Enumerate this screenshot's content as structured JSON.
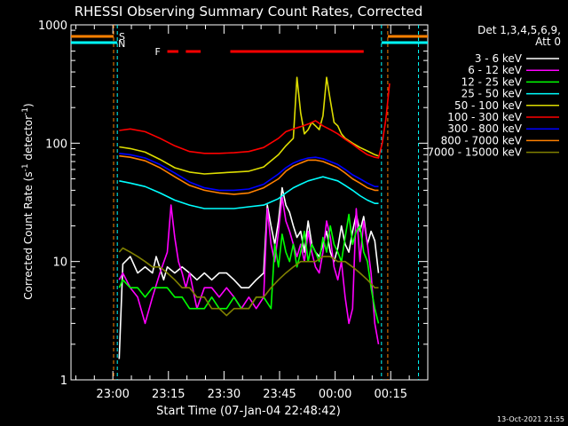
{
  "chart_data": {
    "type": "line",
    "title": "RHESSI Observing Summary Count Rates, Corrected",
    "xlabel": "Start Time (07-Jan-04 22:48:42)",
    "ylabel_prefix": "Corrected Count Rate (s",
    "ylabel_sup1": "-1",
    "ylabel_mid": " detector",
    "ylabel_sup2": "-1",
    "ylabel_suffix": ")",
    "x_unit": "minutes since 22:48:42",
    "xlim": [
      0,
      96.3
    ],
    "ylim": [
      1,
      1000
    ],
    "yscale": "log",
    "x_ticks": [
      {
        "label": "23:00",
        "x": 11.3
      },
      {
        "label": "23:15",
        "x": 26.3
      },
      {
        "label": "23:30",
        "x": 41.3
      },
      {
        "label": "23:45",
        "x": 56.3
      },
      {
        "label": "00:00",
        "x": 71.3
      },
      {
        "label": "00:15",
        "x": 86.3
      }
    ],
    "y_ticks": [
      {
        "label": "1",
        "y": 1
      },
      {
        "label": "10",
        "y": 10
      },
      {
        "label": "100",
        "y": 100
      },
      {
        "label": "1000",
        "y": 1000
      }
    ],
    "legend_header": [
      "Det 1,3,4,5,6,9,",
      "Att 0"
    ],
    "legend_placement": "right",
    "series": [
      {
        "name": "3 - 6 keV",
        "color": "#ffffff",
        "x": [
          13,
          14,
          16,
          18,
          20,
          22,
          23,
          25,
          26,
          28,
          30,
          32,
          34,
          36,
          38,
          40,
          42,
          44,
          46,
          48,
          50,
          52,
          53,
          54,
          55,
          56,
          57,
          58,
          59,
          60,
          61,
          62,
          63,
          64,
          65,
          66,
          67,
          68,
          69,
          70,
          71,
          72,
          73,
          74,
          75,
          76,
          77,
          78,
          79,
          80,
          81,
          82,
          83
        ],
        "y": [
          1.5,
          9.5,
          11,
          8,
          9,
          8,
          11,
          7,
          9,
          8,
          9,
          8,
          7,
          8,
          7,
          8,
          8,
          7,
          6,
          6,
          7,
          8,
          30,
          20,
          14,
          22,
          42,
          30,
          26,
          20,
          16,
          18,
          12,
          22,
          14,
          12,
          11,
          14,
          18,
          12,
          10,
          13,
          20,
          14,
          12,
          18,
          25,
          18,
          24,
          14,
          18,
          15,
          8
        ]
      },
      {
        "name": "6 - 12 keV",
        "color": "#ff00ff",
        "x": [
          13,
          14,
          16,
          18,
          20,
          22,
          24,
          26,
          27,
          28,
          29,
          30,
          31,
          32,
          34,
          36,
          38,
          40,
          42,
          44,
          46,
          48,
          50,
          52,
          53,
          54,
          55,
          56,
          57,
          58,
          59,
          60,
          61,
          62,
          63,
          64,
          65,
          66,
          67,
          68,
          69,
          70,
          71,
          72,
          73,
          74,
          75,
          76,
          77,
          78,
          79,
          80,
          81,
          82,
          83
        ],
        "y": [
          7,
          8,
          6,
          5,
          3,
          5,
          8,
          12,
          30,
          16,
          10,
          8,
          6,
          8,
          4,
          6,
          6,
          5,
          6,
          5,
          4,
          5,
          4,
          5,
          28,
          14,
          10,
          18,
          35,
          22,
          18,
          14,
          11,
          14,
          10,
          18,
          12,
          9,
          8,
          12,
          22,
          16,
          9,
          7,
          10,
          5,
          3,
          4,
          28,
          10,
          22,
          14,
          8,
          3,
          2
        ]
      },
      {
        "name": "12 - 25 keV",
        "color": "#00ff00",
        "x": [
          13,
          14,
          16,
          18,
          20,
          22,
          24,
          26,
          28,
          30,
          32,
          34,
          36,
          38,
          40,
          42,
          44,
          46,
          48,
          50,
          52,
          54,
          55,
          56,
          57,
          58,
          59,
          60,
          61,
          62,
          63,
          64,
          65,
          66,
          67,
          68,
          69,
          70,
          71,
          72,
          73,
          74,
          75,
          76,
          77,
          78,
          79,
          80,
          81,
          82,
          83
        ],
        "y": [
          6,
          7,
          6,
          6,
          5,
          6,
          6,
          6,
          5,
          5,
          4,
          4,
          4,
          5,
          4,
          4,
          5,
          4,
          4,
          5,
          5,
          4,
          14,
          9,
          17,
          12,
          10,
          14,
          9,
          12,
          18,
          10,
          14,
          12,
          10,
          16,
          12,
          20,
          14,
          12,
          10,
          16,
          25,
          14,
          18,
          20,
          12,
          10,
          6,
          4,
          3
        ]
      },
      {
        "name": "25 - 50 keV",
        "color": "#00ffff",
        "x": [
          13,
          16,
          20,
          24,
          28,
          32,
          36,
          40,
          44,
          48,
          52,
          56,
          58,
          60,
          62,
          64,
          66,
          68,
          70,
          72,
          74,
          76,
          78,
          80,
          82,
          83
        ],
        "y": [
          48,
          46,
          43,
          38,
          33,
          30,
          28,
          28,
          28,
          29,
          30,
          34,
          38,
          42,
          45,
          48,
          50,
          52,
          50,
          48,
          44,
          40,
          36,
          33,
          31,
          31
        ]
      },
      {
        "name": "50 - 100 keV",
        "color": "#dddd00",
        "x": [
          13,
          16,
          20,
          24,
          28,
          32,
          36,
          40,
          44,
          48,
          52,
          56,
          58,
          60,
          61,
          62,
          63,
          64,
          65,
          66,
          67,
          68,
          69,
          70,
          71,
          72,
          73,
          74,
          76,
          78,
          80,
          82,
          83
        ],
        "y": [
          93,
          90,
          84,
          73,
          62,
          57,
          55,
          56,
          57,
          58,
          63,
          80,
          95,
          110,
          360,
          180,
          120,
          130,
          150,
          140,
          130,
          170,
          360,
          230,
          150,
          140,
          120,
          110,
          100,
          92,
          86,
          80,
          78
        ]
      },
      {
        "name": "100 - 300 keV",
        "color": "#ff0000",
        "x": [
          13,
          16,
          20,
          24,
          28,
          32,
          36,
          40,
          44,
          48,
          52,
          56,
          58,
          60,
          62,
          64,
          66,
          68,
          70,
          72,
          74,
          76,
          78,
          80,
          82,
          83,
          84,
          85,
          86
        ],
        "y": [
          128,
          132,
          125,
          110,
          95,
          85,
          82,
          82,
          83,
          85,
          92,
          110,
          125,
          132,
          138,
          145,
          155,
          140,
          130,
          120,
          108,
          98,
          88,
          80,
          76,
          75,
          100,
          160,
          320
        ]
      },
      {
        "name": "300 - 800 keV",
        "color": "#0000ff",
        "x": [
          13,
          16,
          20,
          24,
          28,
          32,
          36,
          40,
          44,
          48,
          52,
          56,
          58,
          60,
          62,
          64,
          66,
          68,
          70,
          72,
          74,
          76,
          78,
          80,
          82,
          83
        ],
        "y": [
          82,
          80,
          75,
          66,
          56,
          47,
          42,
          40,
          40,
          41,
          45,
          55,
          62,
          68,
          72,
          75,
          76,
          74,
          70,
          66,
          60,
          54,
          50,
          46,
          43,
          43
        ]
      },
      {
        "name": "800 - 7000 keV",
        "color": "#ff8000",
        "x": [
          13,
          16,
          20,
          24,
          28,
          32,
          36,
          40,
          44,
          48,
          52,
          56,
          58,
          60,
          62,
          64,
          66,
          68,
          70,
          72,
          74,
          76,
          78,
          80,
          82,
          83
        ],
        "y": [
          78,
          76,
          71,
          62,
          52,
          44,
          40,
          38,
          37,
          38,
          42,
          50,
          58,
          64,
          68,
          72,
          72,
          70,
          66,
          62,
          56,
          50,
          46,
          42,
          40,
          40
        ]
      },
      {
        "name": "7000 - 15000 keV",
        "color": "#808000",
        "x": [
          13,
          14,
          16,
          18,
          20,
          22,
          24,
          26,
          28,
          30,
          32,
          34,
          36,
          38,
          40,
          42,
          44,
          46,
          48,
          50,
          52,
          54,
          56,
          58,
          60,
          62,
          64,
          66,
          68,
          70,
          72,
          74,
          76,
          78,
          80,
          82,
          83
        ],
        "y": [
          12,
          13,
          12,
          11,
          10,
          9,
          9,
          8,
          7,
          6,
          6,
          5,
          5,
          4,
          4,
          3.5,
          4,
          4,
          4,
          5,
          5,
          6,
          7,
          8,
          9,
          10,
          10,
          10,
          11,
          11,
          10,
          10,
          9,
          8,
          7,
          6,
          6
        ]
      }
    ],
    "annotations": [
      {
        "label": "S",
        "color": "#ff8000"
      },
      {
        "label": "N",
        "color": "#00ffff"
      },
      {
        "label": "F",
        "color": "#ff0000"
      }
    ],
    "flag_bars": {
      "F": [
        [
          26,
          29
        ],
        [
          31,
          35
        ],
        [
          43,
          79
        ]
      ],
      "S": [
        [
          0,
          11.5
        ],
        [
          85.5,
          96.3
        ]
      ],
      "N": [
        [
          0,
          12.5
        ],
        [
          83.8,
          96.3
        ]
      ]
    },
    "markers": [
      {
        "x": 12.5,
        "color": "#00ffff"
      },
      {
        "x": 11.5,
        "color": "#ff8000"
      },
      {
        "x": 83.8,
        "color": "#00ffff"
      },
      {
        "x": 85.5,
        "color": "#ff8000"
      },
      {
        "x": 93.8,
        "color": "#00ffff"
      }
    ],
    "footer_date": "13-Oct-2021 21:55"
  }
}
